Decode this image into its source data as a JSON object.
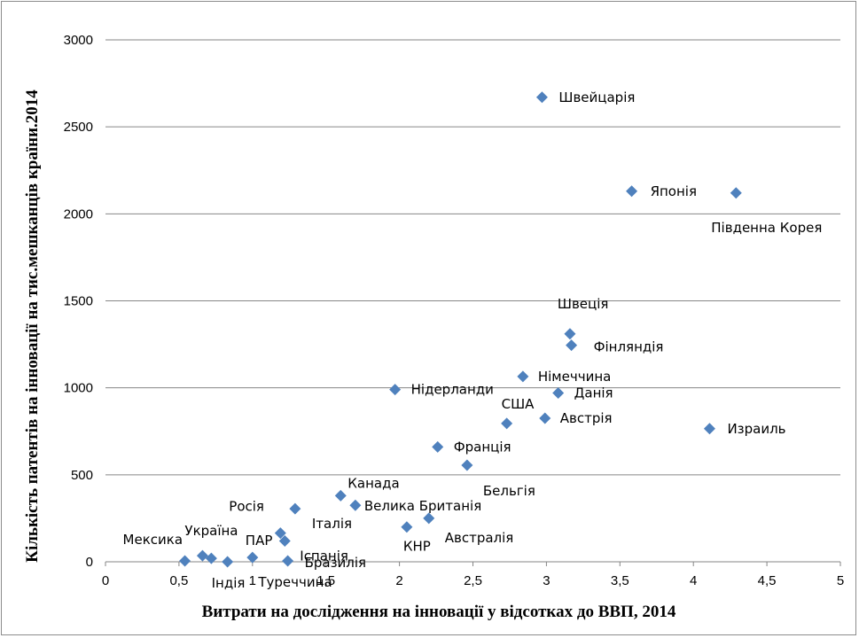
{
  "colors": {
    "marker": "#4f81bd",
    "grid": "#868686",
    "axis": "#868686"
  },
  "chart_data": {
    "type": "scatter",
    "xlabel": "Витрати  на дослідження на інновації у відсотках до ВВП, 2014",
    "ylabel": "Кількість  патентів  на  інновації на тис.мешканців  країни.2014",
    "xlim": [
      0,
      5
    ],
    "ylim": [
      0,
      3000
    ],
    "x_ticks": [
      "0",
      "0,5",
      "1",
      "1,5",
      "2",
      "2,5",
      "3",
      "3,5",
      "4",
      "4,5",
      "5"
    ],
    "y_ticks": [
      "0",
      "500",
      "1000",
      "1500",
      "2000",
      "2500",
      "3000"
    ],
    "grid": "horizontal",
    "points": [
      {
        "label": "Швейцарія",
        "x": 2.97,
        "y": 2670
      },
      {
        "label": "Японія",
        "x": 3.58,
        "y": 2130
      },
      {
        "label": "Південна Корея",
        "x": 4.29,
        "y": 2120
      },
      {
        "label": "Швеція",
        "x": 3.16,
        "y": 1310
      },
      {
        "label": "Фінляндія",
        "x": 3.17,
        "y": 1245
      },
      {
        "label": "Німеччина",
        "x": 2.84,
        "y": 1065
      },
      {
        "label": "Данія",
        "x": 3.08,
        "y": 970
      },
      {
        "label": "Нідерланди",
        "x": 1.97,
        "y": 990
      },
      {
        "label": "США",
        "x": 2.73,
        "y": 795
      },
      {
        "label": "Австрія",
        "x": 2.99,
        "y": 825
      },
      {
        "label": "Израиль",
        "x": 4.11,
        "y": 765
      },
      {
        "label": "Франція",
        "x": 2.26,
        "y": 660
      },
      {
        "label": "Бельгія",
        "x": 2.46,
        "y": 555
      },
      {
        "label": "Канада",
        "x": 1.6,
        "y": 380
      },
      {
        "label": "Велика Британія",
        "x": 1.7,
        "y": 325
      },
      {
        "label": "Італія",
        "x": 1.29,
        "y": 305
      },
      {
        "label": "Австралія",
        "x": 2.2,
        "y": 250
      },
      {
        "label": "КНР",
        "x": 2.05,
        "y": 200
      },
      {
        "label": "Росія",
        "x": 1.19,
        "y": 165
      },
      {
        "label": "Іспанія",
        "x": 1.22,
        "y": 120
      },
      {
        "label": "Україна",
        "x": 0.66,
        "y": 35
      },
      {
        "label": "ПАР",
        "x": 1.0,
        "y": 25
      },
      {
        "label": "Мексика",
        "x": 0.54,
        "y": 5
      },
      {
        "label": "Індія",
        "x": 0.83,
        "y": 0
      },
      {
        "label": "Туреччина",
        "x": 0.72,
        "y": 20
      },
      {
        "label": "Бразилія",
        "x": 1.24,
        "y": 5
      }
    ]
  }
}
